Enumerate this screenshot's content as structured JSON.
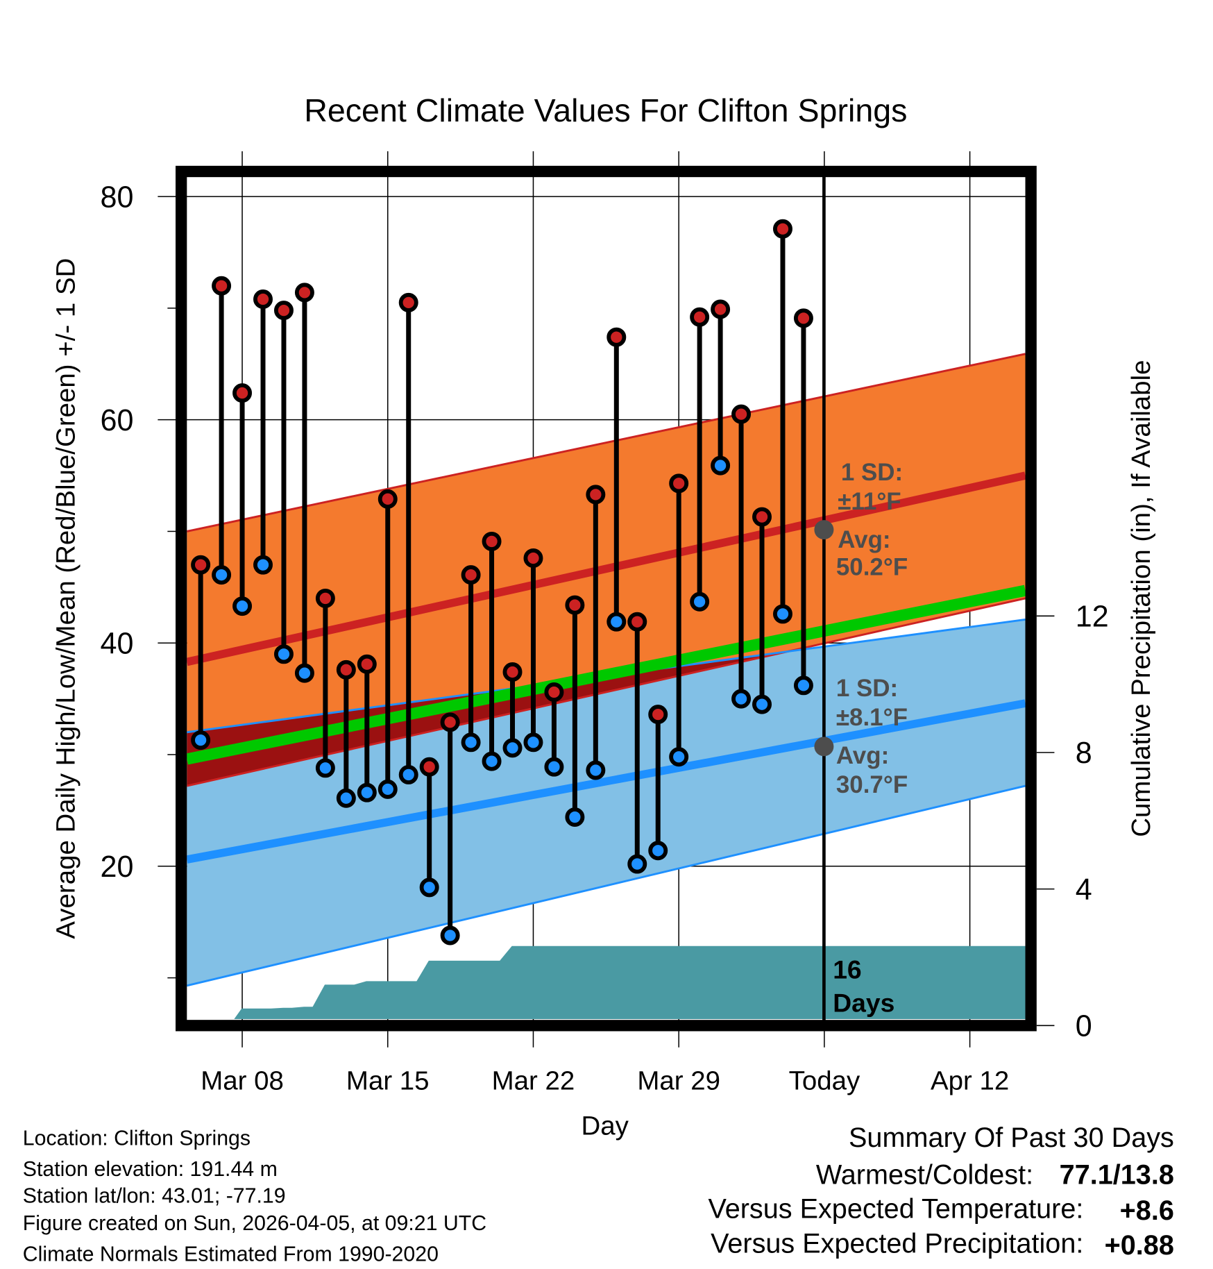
{
  "chart_data": {
    "type": "line",
    "title": "Recent Climate Values For Clifton Springs",
    "xlabel": "Day",
    "ylabel": "Average Daily High/Low/Mean (Red/Blue/Green) +/- 1 SD",
    "ylabel_right": "Cumulative Precipitation (in), If Available",
    "ylim": [
      5,
      83
    ],
    "yticks": [
      "80",
      "60",
      "40",
      "20"
    ],
    "ytick_values": [
      80,
      60,
      40,
      20
    ],
    "yticks_right": [
      "12",
      "8",
      "4",
      "0"
    ],
    "ytick_right_values": [
      12,
      8,
      4,
      0
    ],
    "xticks": [
      "Mar 08",
      "Mar 15",
      "Mar 22",
      "Mar 29",
      "Today",
      "Apr 12"
    ],
    "xtick_days": [
      2,
      9,
      16,
      23,
      30,
      37
    ],
    "grid": true,
    "days": [
      "Mar 06",
      "Mar 07",
      "Mar 08",
      "Mar 09",
      "Mar 10",
      "Mar 11",
      "Mar 12",
      "Mar 13",
      "Mar 14",
      "Mar 15",
      "Mar 16",
      "Mar 17",
      "Mar 18",
      "Mar 19",
      "Mar 20",
      "Mar 21",
      "Mar 22",
      "Mar 23",
      "Mar 24",
      "Mar 25",
      "Mar 26",
      "Mar 27",
      "Mar 28",
      "Mar 29",
      "Mar 30",
      "Mar 31",
      "Apr 01",
      "Apr 02",
      "Apr 03",
      "Apr 04"
    ],
    "highs": [
      47.0,
      72.0,
      62.4,
      70.8,
      69.8,
      71.4,
      44.0,
      37.6,
      38.1,
      52.9,
      70.5,
      28.9,
      32.9,
      46.1,
      49.1,
      37.4,
      47.6,
      35.6,
      43.4,
      53.3,
      67.4,
      41.9,
      33.6,
      54.3,
      69.2,
      69.9,
      60.5,
      51.3,
      77.1,
      69.1
    ],
    "lows": [
      31.3,
      46.1,
      43.3,
      47.0,
      39.0,
      37.3,
      28.8,
      26.1,
      26.6,
      26.9,
      28.2,
      18.1,
      13.8,
      31.1,
      29.4,
      30.6,
      31.1,
      28.9,
      24.4,
      28.6,
      41.9,
      20.2,
      21.4,
      29.8,
      43.7,
      55.9,
      35.0,
      34.5,
      42.6,
      36.2
    ],
    "precip_cumulative": [
      0,
      0.5,
      0.5,
      0.52,
      0.55,
      1.2,
      1.2,
      1.3,
      1.3,
      1.3,
      1.9,
      1.9,
      1.9,
      1.9,
      2.33,
      2.33,
      2.33,
      2.33,
      2.33,
      2.33,
      2.33,
      2.33,
      2.33,
      2.33,
      2.33,
      2.33,
      2.33,
      2.33,
      2.33,
      2.33
    ],
    "normals": {
      "high_mean": [
        38.3,
        55.0
      ],
      "high_upper": [
        50.0,
        65.9
      ],
      "high_lower": [
        27.2,
        44.0
      ],
      "low_mean": [
        20.6,
        34.6
      ],
      "low_upper": [
        32.0,
        42.1
      ],
      "low_lower": [
        9.3,
        27.2
      ],
      "mean": [
        29.6,
        44.7
      ]
    },
    "annotations": {
      "high_sd_label": "1 SD:",
      "high_sd_value": "±11°F",
      "high_avg_label": "Avg:",
      "high_avg_value": "50.2°F",
      "low_sd_label": "1 SD:",
      "low_sd_value": "±8.1°F",
      "low_avg_label": "Avg:",
      "low_avg_value": "30.7°F",
      "days_count": "16",
      "days_word": "Days"
    },
    "today_high_avg": 50.2,
    "today_low_avg": 30.7
  },
  "footer": {
    "location": "Location: Clifton Springs",
    "elevation": "Station elevation: 191.44 m",
    "latlon": "Station lat/lon: 43.01; -77.19",
    "created": "Figure created on Sun, 2026-04-05, at 09:21 UTC",
    "normals": "Climate Normals Estimated From 1990-2020"
  },
  "summary": {
    "title": "Summary Of Past 30 Days",
    "warmest_label": "Warmest/Coldest:",
    "warmest_value": "77.1/13.8",
    "temp_label": "Versus Expected Temperature:",
    "temp_value": "+8.6",
    "precip_label": "Versus Expected Precipitation:",
    "precip_value": "+0.88"
  },
  "colors": {
    "high": "#cc2222",
    "low": "#1e90ff",
    "orange": "#f47a2e",
    "lightblue": "#82c0e6",
    "darkred": "#9b1111",
    "green": "#00c800",
    "precip": "#4a9aa3",
    "temp_delta": "#cc2222",
    "precip_delta": "#00bb00"
  }
}
